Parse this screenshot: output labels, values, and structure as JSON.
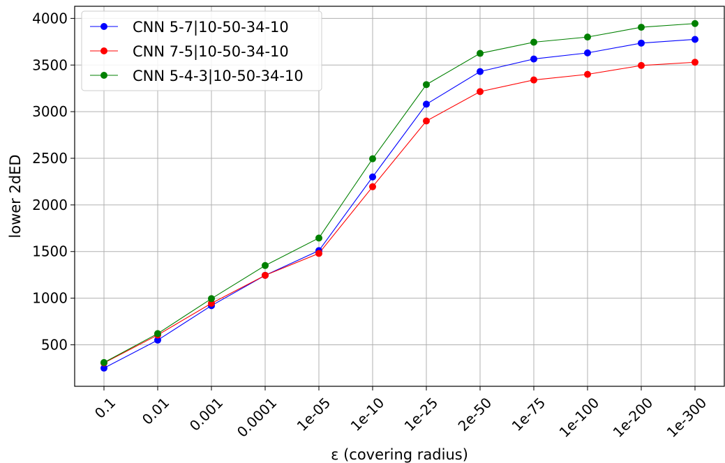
{
  "chart_data": {
    "type": "line",
    "categories": [
      "0.1",
      "0.01",
      "0.001",
      "0.0001",
      "1e-05",
      "1e-10",
      "1e-25",
      "2e-50",
      "1e-75",
      "1e-100",
      "1e-200",
      "1e-300"
    ],
    "xlabel": "ε (covering radius)",
    "ylabel": "lower 2dED",
    "ylim": [
      55,
      4130
    ],
    "yticks": [
      500,
      1000,
      1500,
      2000,
      2500,
      3000,
      3500,
      4000
    ],
    "ytick_labels": [
      "500",
      "1000",
      "1500",
      "2000",
      "2500",
      "3000",
      "3500",
      "4000"
    ],
    "grid": true,
    "legend_position": "top-left",
    "series": [
      {
        "name": "CNN 5-7|10-50-34-10",
        "color": "#0000ff",
        "values": [
          250,
          550,
          920,
          1245,
          1510,
          2300,
          3080,
          3430,
          3565,
          3630,
          3735,
          3775
        ]
      },
      {
        "name": "CNN 7-5|10-50-34-10",
        "color": "#ff0000",
        "values": [
          305,
          605,
          945,
          1245,
          1480,
          2195,
          2900,
          3215,
          3340,
          3400,
          3495,
          3530
        ]
      },
      {
        "name": "CNN 5-4-3|10-50-34-10",
        "color": "#008000",
        "values": [
          310,
          620,
          995,
          1350,
          1645,
          2495,
          3290,
          3625,
          3745,
          3800,
          3905,
          3945
        ]
      }
    ]
  }
}
